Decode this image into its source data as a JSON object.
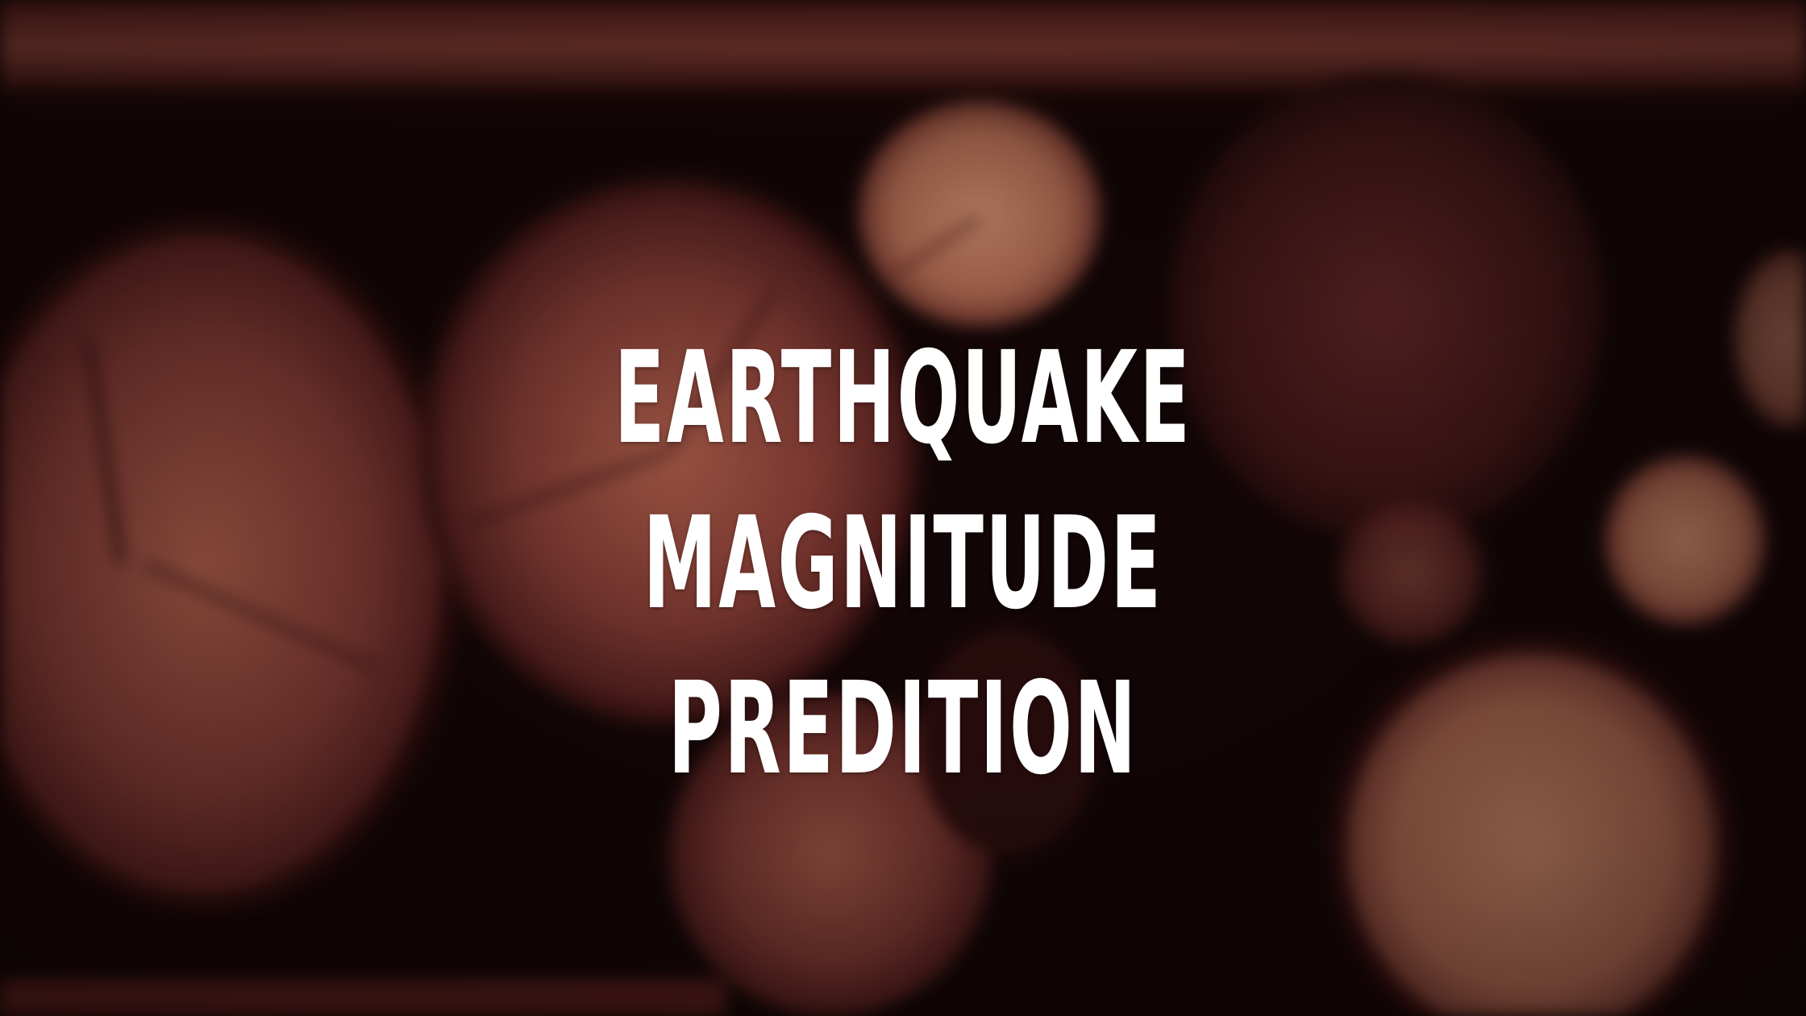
{
  "slide": {
    "title_lines": [
      "EARTHQUAKE MAGNITUDE",
      "PREDITION"
    ]
  },
  "background": {
    "description_icon": "log-stack-photo",
    "base_color": "#140607",
    "wood_colors": [
      "#8c3f35",
      "#b2644f",
      "#5a2120",
      "#3a1012"
    ]
  }
}
